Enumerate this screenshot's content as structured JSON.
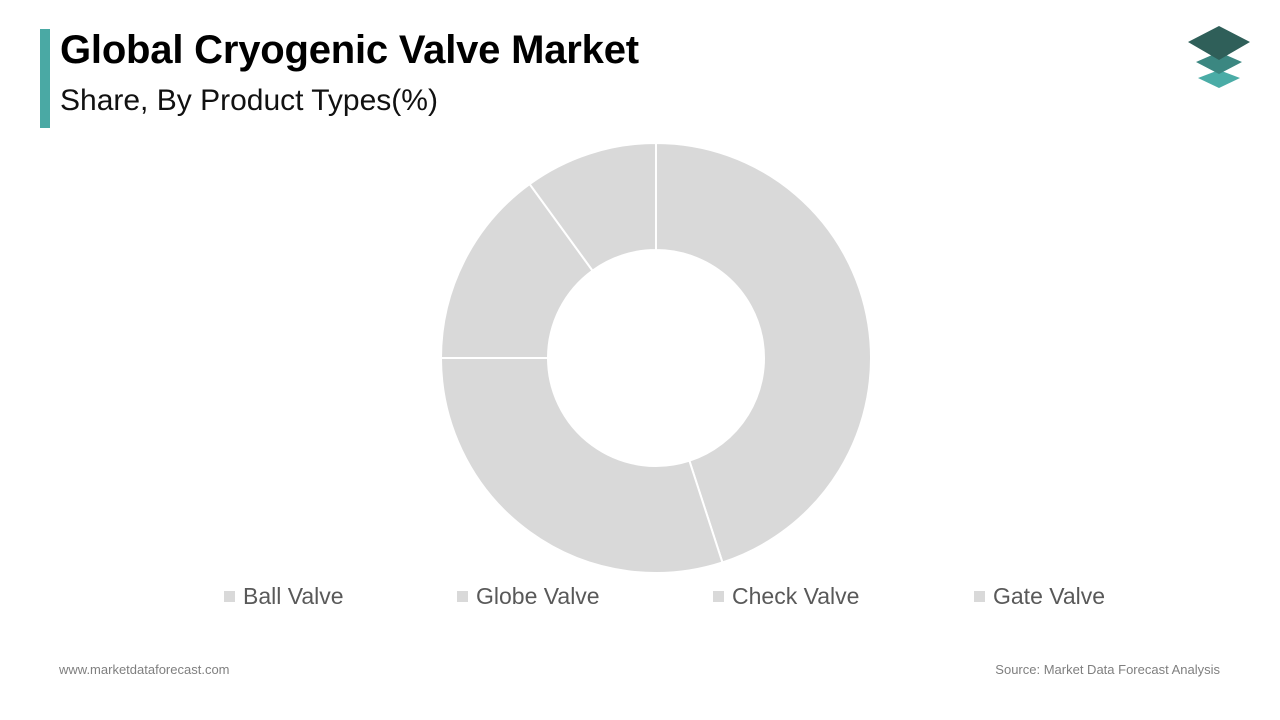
{
  "header": {
    "title": "Global Cryogenic Valve Market",
    "subtitle": "Share, By Product Types(%)"
  },
  "logo": {
    "icon": "stacked-layers-logo-icon"
  },
  "chart_data": {
    "type": "pie",
    "title": "Global Cryogenic Valve Market",
    "subtitle": "Share, By Product Types(%)",
    "categories": [
      "Ball Valve",
      "Globe Valve",
      "Check Valve",
      "Gate Valve"
    ],
    "values": [
      45,
      30,
      15,
      10
    ],
    "colors": [
      "#d9d9d9",
      "#d9d9d9",
      "#d9d9d9",
      "#d9d9d9"
    ],
    "donut": true,
    "legend_position": "bottom"
  },
  "footer": {
    "website": "www.marketdataforecast.com",
    "source": "Source: Market Data Forecast Analysis"
  },
  "colors": {
    "accent": "#4aa9a4",
    "slice": "#d9d9d9",
    "legend_text": "#595959",
    "footer_text": "#7f7f7f"
  }
}
